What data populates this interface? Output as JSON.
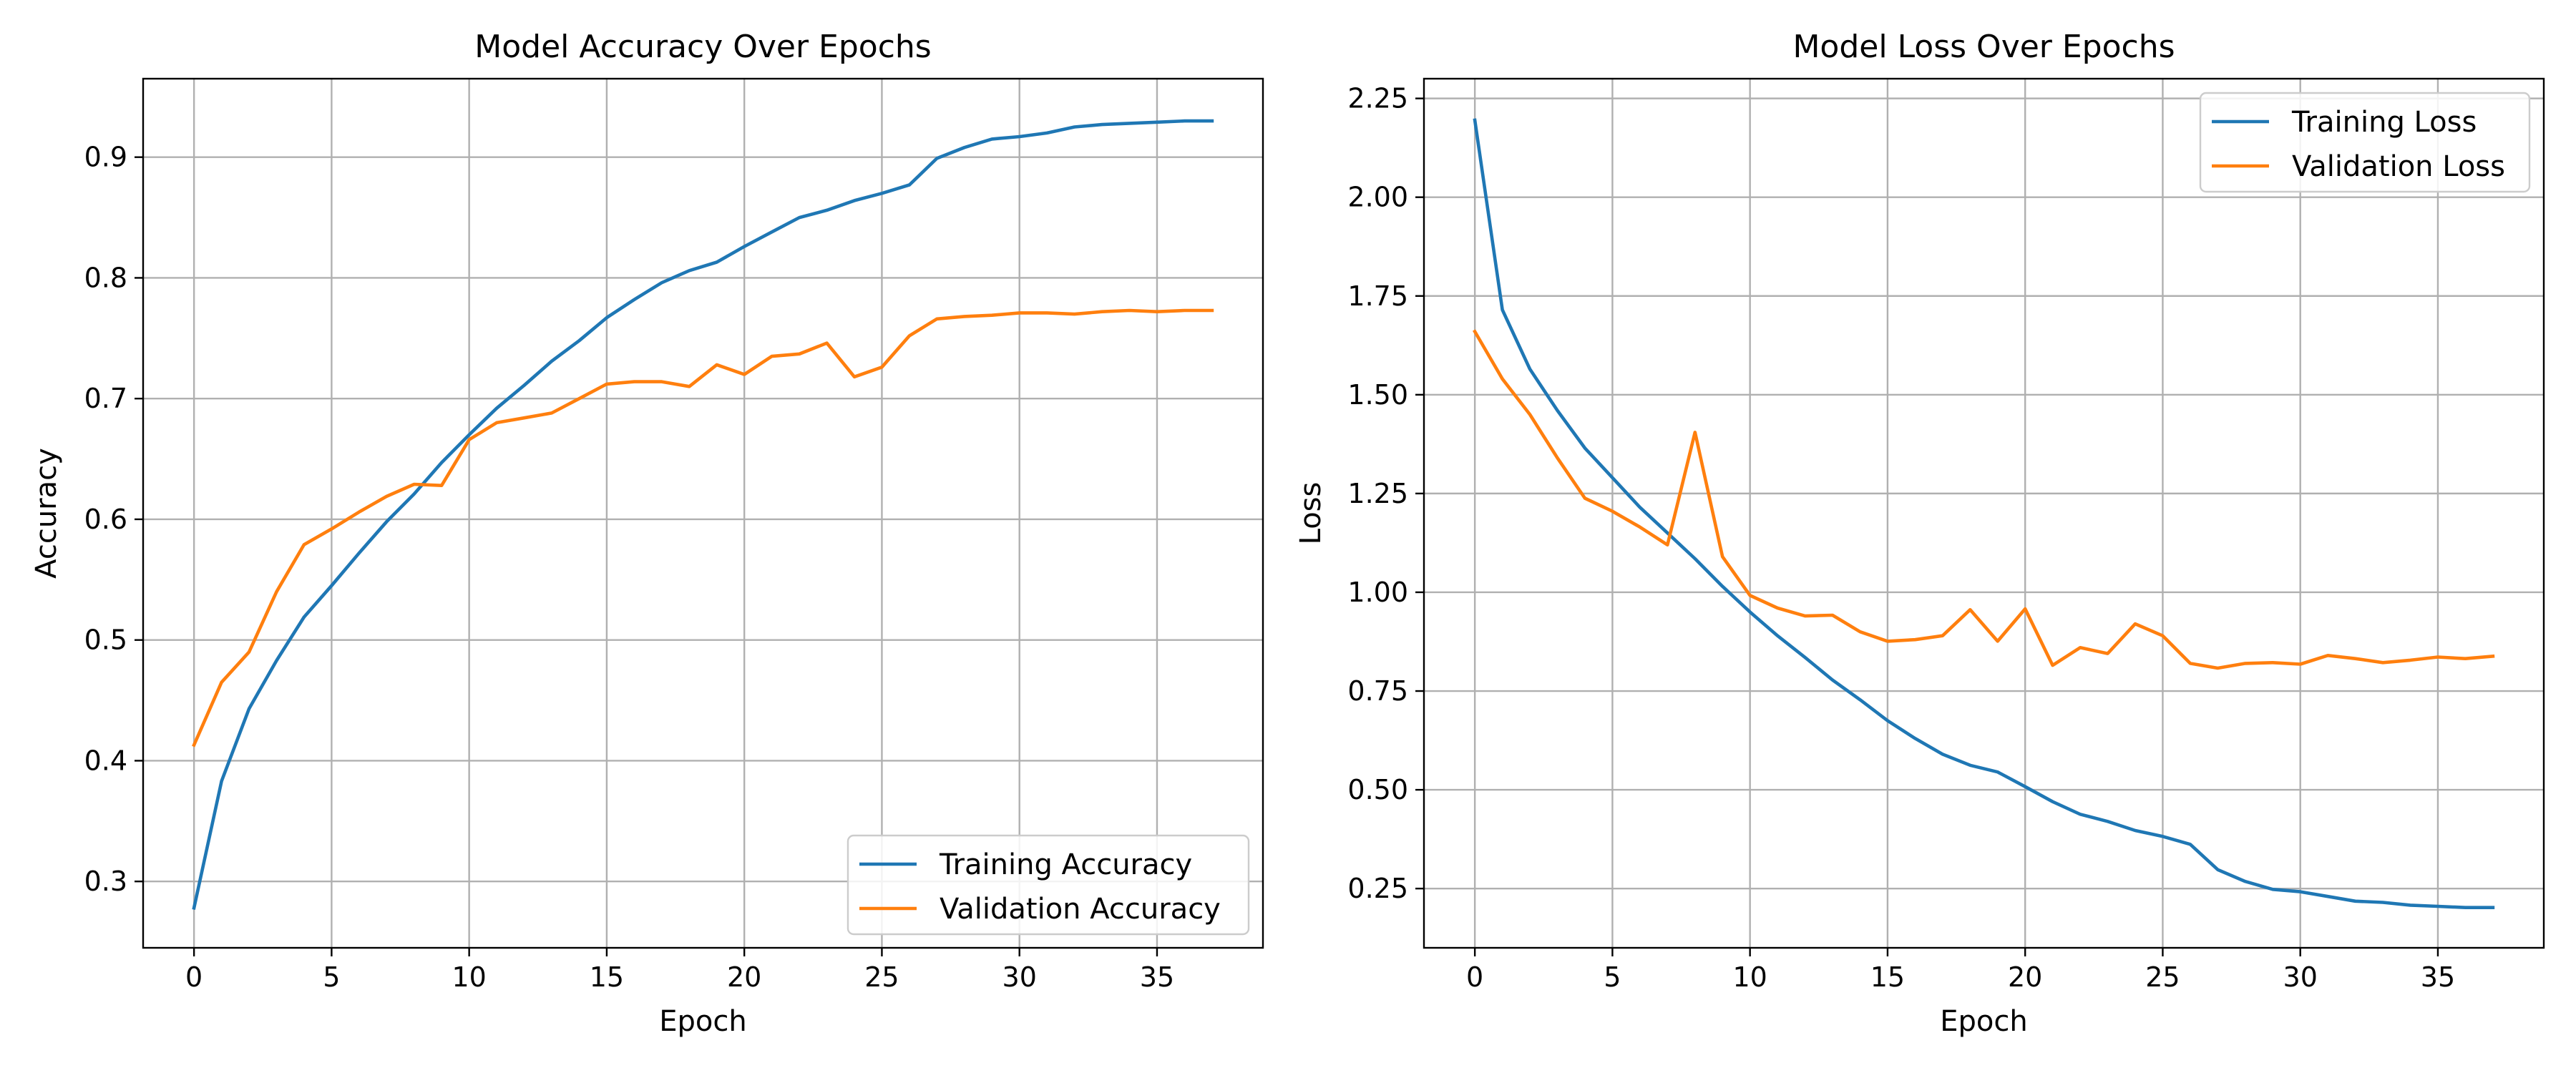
{
  "colors": {
    "training": "#1f77b4",
    "validation": "#ff7f0e"
  },
  "chart_data": [
    {
      "type": "line",
      "title": "Model Accuracy Over Epochs",
      "xlabel": "Epoch",
      "ylabel": "Accuracy",
      "xlim": [
        -1.85,
        38.85
      ],
      "ylim": [
        0.245,
        0.965
      ],
      "xticks": [
        0,
        5,
        10,
        15,
        20,
        25,
        30,
        35
      ],
      "xtick_labels": [
        "0",
        "5",
        "10",
        "15",
        "20",
        "25",
        "30",
        "35"
      ],
      "yticks": [
        0.3,
        0.4,
        0.5,
        0.6,
        0.7,
        0.8,
        0.9
      ],
      "ytick_labels": [
        "0.3",
        "0.4",
        "0.5",
        "0.6",
        "0.7",
        "0.8",
        "0.9"
      ],
      "grid": true,
      "legend_position": "lower-right",
      "x": [
        0,
        1,
        2,
        3,
        4,
        5,
        6,
        7,
        8,
        9,
        10,
        11,
        12,
        13,
        14,
        15,
        16,
        17,
        18,
        19,
        20,
        21,
        22,
        23,
        24,
        25,
        26,
        27,
        28,
        29,
        30,
        31,
        32,
        33,
        34,
        35,
        36,
        37
      ],
      "series": [
        {
          "name": "Training Accuracy",
          "color_key": "training",
          "values": [
            0.278,
            0.383,
            0.443,
            0.483,
            0.519,
            0.545,
            0.572,
            0.598,
            0.621,
            0.647,
            0.67,
            0.692,
            0.711,
            0.731,
            0.748,
            0.767,
            0.782,
            0.796,
            0.806,
            0.813,
            0.826,
            0.838,
            0.85,
            0.856,
            0.864,
            0.87,
            0.877,
            0.899,
            0.908,
            0.915,
            0.917,
            0.92,
            0.925,
            0.927,
            0.928,
            0.929,
            0.93,
            0.93
          ]
        },
        {
          "name": "Validation Accuracy",
          "color_key": "validation",
          "values": [
            0.413,
            0.465,
            0.49,
            0.54,
            0.579,
            0.592,
            0.606,
            0.619,
            0.629,
            0.628,
            0.666,
            0.68,
            0.684,
            0.688,
            0.7,
            0.712,
            0.714,
            0.714,
            0.71,
            0.728,
            0.72,
            0.735,
            0.737,
            0.746,
            0.718,
            0.726,
            0.752,
            0.766,
            0.768,
            0.769,
            0.771,
            0.771,
            0.77,
            0.772,
            0.773,
            0.772,
            0.773,
            0.773
          ]
        }
      ]
    },
    {
      "type": "line",
      "title": "Model Loss Over Epochs",
      "xlabel": "Epoch",
      "ylabel": "Loss",
      "xlim": [
        -1.85,
        38.85
      ],
      "ylim": [
        0.1,
        2.3
      ],
      "xticks": [
        0,
        5,
        10,
        15,
        20,
        25,
        30,
        35
      ],
      "xtick_labels": [
        "0",
        "5",
        "10",
        "15",
        "20",
        "25",
        "30",
        "35"
      ],
      "yticks": [
        0.25,
        0.5,
        0.75,
        1.0,
        1.25,
        1.5,
        1.75,
        2.0,
        2.25
      ],
      "ytick_labels": [
        "0.25",
        "0.50",
        "0.75",
        "1.00",
        "1.25",
        "1.50",
        "1.75",
        "2.00",
        "2.25"
      ],
      "grid": true,
      "legend_position": "upper-right",
      "x": [
        0,
        1,
        2,
        3,
        4,
        5,
        6,
        7,
        8,
        9,
        10,
        11,
        12,
        13,
        14,
        15,
        16,
        17,
        18,
        19,
        20,
        21,
        22,
        23,
        24,
        25,
        26,
        27,
        28,
        29,
        30,
        31,
        32,
        33,
        34,
        35,
        36,
        37
      ],
      "series": [
        {
          "name": "Training Loss",
          "color_key": "training",
          "values": [
            2.195,
            1.715,
            1.565,
            1.46,
            1.365,
            1.29,
            1.215,
            1.15,
            1.085,
            1.015,
            0.95,
            0.89,
            0.835,
            0.778,
            0.728,
            0.675,
            0.63,
            0.59,
            0.562,
            0.545,
            0.508,
            0.47,
            0.438,
            0.42,
            0.397,
            0.382,
            0.362,
            0.298,
            0.268,
            0.248,
            0.242,
            0.23,
            0.218,
            0.215,
            0.208,
            0.205,
            0.202,
            0.202
          ]
        },
        {
          "name": "Validation Loss",
          "color_key": "validation",
          "values": [
            1.66,
            1.54,
            1.45,
            1.34,
            1.238,
            1.205,
            1.165,
            1.12,
            1.405,
            1.09,
            0.992,
            0.96,
            0.94,
            0.942,
            0.9,
            0.876,
            0.88,
            0.89,
            0.956,
            0.876,
            0.958,
            0.815,
            0.86,
            0.845,
            0.92,
            0.89,
            0.82,
            0.808,
            0.82,
            0.822,
            0.818,
            0.84,
            0.832,
            0.822,
            0.828,
            0.836,
            0.832,
            0.838
          ]
        }
      ]
    }
  ]
}
